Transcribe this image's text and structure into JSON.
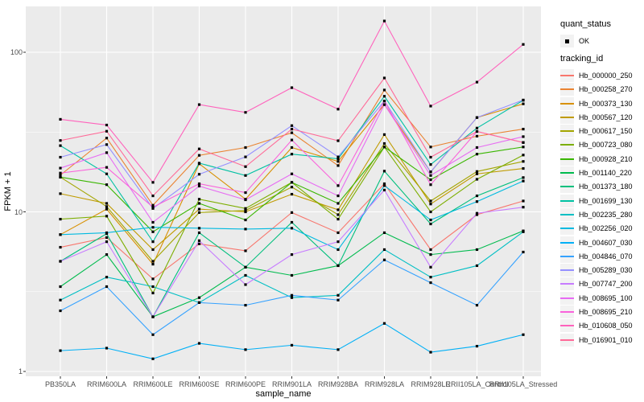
{
  "chart_data": {
    "type": "line",
    "title": "",
    "xlabel": "sample_name",
    "ylabel": "FPKM + 1",
    "y_scale": "log10",
    "ylim": [
      0.93,
      194
    ],
    "y_ticks": [
      1,
      10,
      100
    ],
    "y_tick_labels": [
      "1",
      "10",
      "100"
    ],
    "y_minor_ticks": [
      3.1623,
      31.623
    ],
    "grid": "on",
    "panel_bg": "#EBEBEB",
    "grid_color": "#FFFFFF",
    "point_color": "#000000",
    "legend_position": "right",
    "categories": [
      "PB350LA",
      "RRIM600LA",
      "RRIM600LE",
      "RRIM600SE",
      "RRIM600PE",
      "RRIM901LA",
      "RRIM928BA",
      "RRIM928LA",
      "RRIM928LE",
      "RRII105LA_Control",
      "RRII105LA_Stressed"
    ],
    "series": [
      {
        "name": "Hb_000000_250",
        "color": "#F8766D",
        "values": [
          6.0,
          6.9,
          3.8,
          6.3,
          5.7,
          9.9,
          7.4,
          15.0,
          5.8,
          9.6,
          11.7
        ]
      },
      {
        "name": "Hb_000258_270",
        "color": "#EA8331",
        "values": [
          17.0,
          29.0,
          11.0,
          22.6,
          25.3,
          31.3,
          19.5,
          58.0,
          25.5,
          29.8,
          33.0
        ]
      },
      {
        "name": "Hb_000373_130",
        "color": "#D89000",
        "values": [
          7.2,
          10.4,
          4.7,
          20.0,
          12.0,
          25.3,
          20.7,
          47.0,
          17.8,
          39.0,
          47.5
        ]
      },
      {
        "name": "Hb_000567_120",
        "color": "#C09B00",
        "values": [
          13.0,
          11.3,
          5.8,
          10.4,
          10.0,
          12.9,
          10.3,
          30.5,
          11.2,
          17.3,
          18.7
        ]
      },
      {
        "name": "Hb_000617_150",
        "color": "#A3A500",
        "values": [
          16.5,
          10.8,
          4.9,
          9.9,
          10.2,
          14.3,
          9.6,
          26.8,
          11.7,
          17.9,
          20.7
        ]
      },
      {
        "name": "Hb_000723_080",
        "color": "#7CAE00",
        "values": [
          9.0,
          9.4,
          3.1,
          12.0,
          10.5,
          15.3,
          9.0,
          25.5,
          10.0,
          16.0,
          22.7
        ]
      },
      {
        "name": "Hb_000928_210",
        "color": "#39B600",
        "values": [
          16.5,
          14.8,
          7.5,
          11.3,
          8.9,
          15.3,
          11.3,
          25.5,
          15.9,
          23.0,
          25.5
        ]
      },
      {
        "name": "Hb_001140_220",
        "color": "#00BB4E",
        "values": [
          3.4,
          5.4,
          2.2,
          2.9,
          4.5,
          4.0,
          4.6,
          7.4,
          5.4,
          5.8,
          7.6
        ]
      },
      {
        "name": "Hb_001373_180",
        "color": "#00BF7D",
        "values": [
          4.9,
          7.3,
          2.2,
          7.4,
          4.5,
          8.6,
          4.6,
          18.0,
          8.4,
          12.6,
          16.4
        ]
      },
      {
        "name": "Hb_001699_130",
        "color": "#00C1A3",
        "values": [
          26.0,
          17.3,
          6.5,
          20.2,
          16.9,
          23.0,
          21.5,
          53.0,
          19.8,
          33.5,
          50.0
        ]
      },
      {
        "name": "Hb_002235_280",
        "color": "#00BFC4",
        "values": [
          2.8,
          3.9,
          3.4,
          2.7,
          4.0,
          2.9,
          3.0,
          5.8,
          3.9,
          4.6,
          7.5
        ]
      },
      {
        "name": "Hb_002256_020",
        "color": "#00BAE0",
        "values": [
          7.2,
          7.4,
          8.0,
          7.9,
          7.8,
          7.9,
          5.8,
          14.6,
          8.9,
          11.6,
          15.6
        ]
      },
      {
        "name": "Hb_004607_030",
        "color": "#00B0F6",
        "values": [
          1.35,
          1.4,
          1.2,
          1.5,
          1.37,
          1.46,
          1.37,
          2.0,
          1.32,
          1.44,
          1.7
        ]
      },
      {
        "name": "Hb_004846_070",
        "color": "#35A2FF",
        "values": [
          2.4,
          3.4,
          1.7,
          2.7,
          2.6,
          3.0,
          2.8,
          5.0,
          3.6,
          2.6,
          5.6
        ]
      },
      {
        "name": "Hb_005289_030",
        "color": "#9590FF",
        "values": [
          22.0,
          26.4,
          10.5,
          17.2,
          22.1,
          34.7,
          22.1,
          49.5,
          17.8,
          39.0,
          50.2
        ]
      },
      {
        "name": "Hb_007747_200",
        "color": "#C77CFF",
        "values": [
          4.9,
          6.5,
          2.2,
          6.6,
          3.5,
          5.4,
          6.5,
          13.7,
          4.5,
          9.8,
          10.7
        ]
      },
      {
        "name": "Hb_008695_100",
        "color": "#E76BF3",
        "values": [
          18.8,
          23.5,
          8.6,
          14.5,
          11.9,
          17.3,
          12.6,
          47.0,
          16.9,
          25.3,
          29.6
        ]
      },
      {
        "name": "Hb_008695_210",
        "color": "#FA62DB",
        "values": [
          17.5,
          19.0,
          10.7,
          15.0,
          13.2,
          28.2,
          14.6,
          49.5,
          14.8,
          31.9,
          27.2
        ]
      },
      {
        "name": "Hb_010608_050",
        "color": "#FF62BC",
        "values": [
          38.0,
          35.0,
          15.3,
          47.0,
          42.0,
          60.0,
          44.0,
          157.0,
          46.0,
          65.0,
          112.0
        ]
      },
      {
        "name": "Hb_016901_010",
        "color": "#FF6A98",
        "values": [
          28.0,
          32.0,
          12.6,
          24.8,
          19.2,
          33.0,
          27.9,
          69.0,
          22.0,
          31.9,
          27.2
        ]
      }
    ],
    "legend": {
      "quant_status_title": "quant_status",
      "quant_status_items": [
        "OK"
      ],
      "tracking_id_title": "tracking_id"
    }
  }
}
